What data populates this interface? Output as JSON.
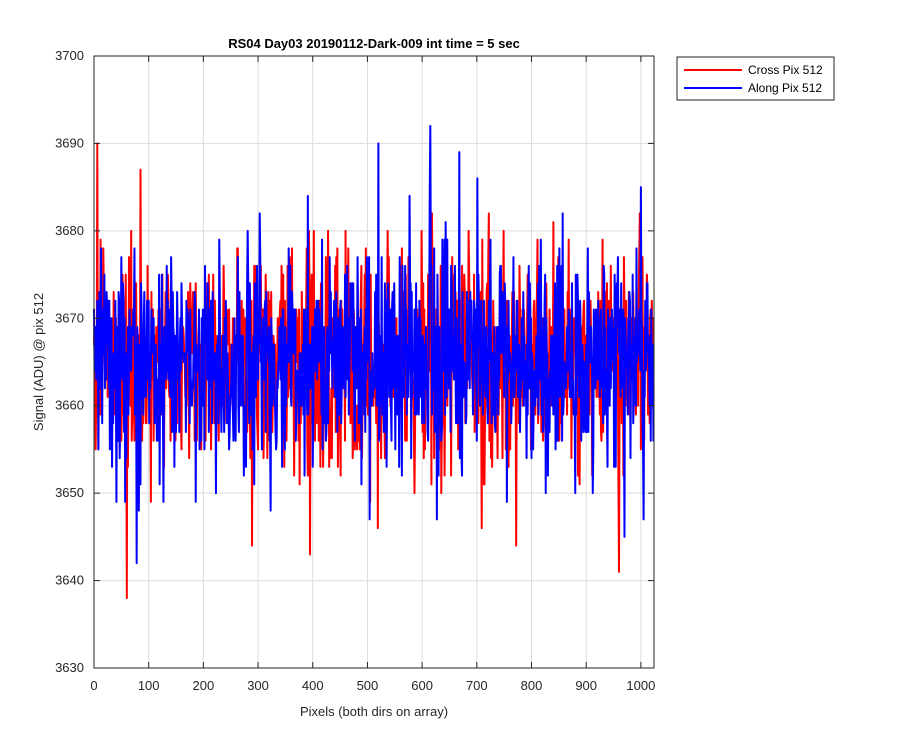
{
  "chart_data": {
    "type": "line",
    "title": "RS04 Day03 20190112-Dark-009 int time = 5 sec",
    "xlabel": "Pixels (both dirs on array)",
    "ylabel": "Signal (ADU) @ pix 512",
    "xlim": [
      0,
      1024
    ],
    "ylim": [
      3630,
      3700
    ],
    "xticks": [
      0,
      100,
      200,
      300,
      400,
      500,
      600,
      700,
      800,
      900,
      1000
    ],
    "yticks": [
      3630,
      3640,
      3650,
      3660,
      3670,
      3680,
      3690,
      3700
    ],
    "xtick_labels": [
      "0",
      "100",
      "200",
      "300",
      "400",
      "500",
      "600",
      "700",
      "800",
      "900",
      "1000"
    ],
    "ytick_labels": [
      "3630",
      "3640",
      "3650",
      "3660",
      "3670",
      "3680",
      "3690",
      "3700"
    ],
    "grid": true,
    "legend_position": "outside-top-right",
    "noise_model": {
      "mean": 3665,
      "std": 6.5,
      "points_per_series": 1024
    },
    "series": [
      {
        "name": "Cross Pix 512",
        "color": "#ff0000",
        "seed": 17,
        "highlights": [
          {
            "x": 6,
            "y": 3690
          },
          {
            "x": 60,
            "y": 3638
          },
          {
            "x": 85,
            "y": 3687
          },
          {
            "x": 395,
            "y": 3643
          },
          {
            "x": 772,
            "y": 3644
          },
          {
            "x": 960,
            "y": 3641
          }
        ]
      },
      {
        "name": "Along Pix 512",
        "color": "#0000ff",
        "seed": 91,
        "highlights": [
          {
            "x": 78,
            "y": 3642
          },
          {
            "x": 520,
            "y": 3690
          },
          {
            "x": 615,
            "y": 3692
          },
          {
            "x": 668,
            "y": 3689
          },
          {
            "x": 1000,
            "y": 3685
          },
          {
            "x": 1005,
            "y": 3647
          }
        ]
      }
    ]
  }
}
